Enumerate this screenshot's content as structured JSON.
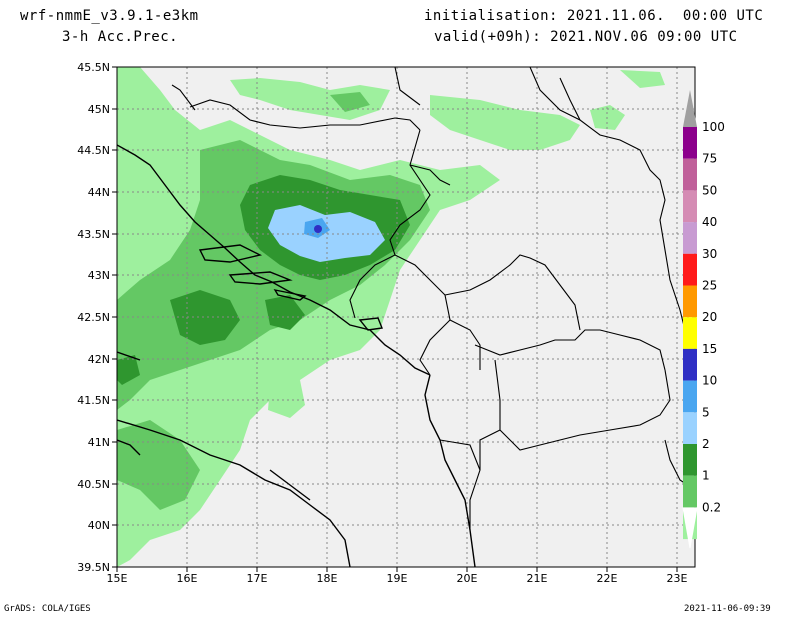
{
  "header": {
    "model": "wrf-nmmE_v3.9.1-e3km",
    "field": "3-h Acc.Prec.",
    "init": "initialisation: 2021.11.06.  00:00 UTC",
    "valid": "valid(+09h): 2021.NOV.06 09:00 UTC"
  },
  "map": {
    "lat_labels": [
      "45.5N",
      "45N",
      "44.5N",
      "44N",
      "43.5N",
      "43N",
      "42.5N",
      "42N",
      "41.5N",
      "41N",
      "40.5N",
      "40N",
      "39.5N"
    ],
    "lon_labels": [
      "15E",
      "16E",
      "17E",
      "18E",
      "19E",
      "20E",
      "21E",
      "22E",
      "23E"
    ],
    "lon_range": [
      15,
      23.3
    ],
    "lat_range": [
      39.5,
      45.5
    ]
  },
  "colorbar": {
    "labels": [
      "100",
      "75",
      "50",
      "40",
      "30",
      "25",
      "20",
      "15",
      "10",
      "5",
      "2",
      "1",
      "0.2"
    ],
    "colors": [
      "#8c008c",
      "#c0609a",
      "#d58cb4",
      "#c89bd2",
      "#ff1a1a",
      "#ff9900",
      "#ffff00",
      "#2f2fc4",
      "#4aa6f0",
      "#9ad2ff",
      "#2f962f",
      "#64c864",
      "#9ef09e"
    ],
    "cap_color": "#a0a0a0"
  },
  "footer": {
    "left": "GrADS: COLA/IGES",
    "right": "2021-11-06-09:39"
  }
}
